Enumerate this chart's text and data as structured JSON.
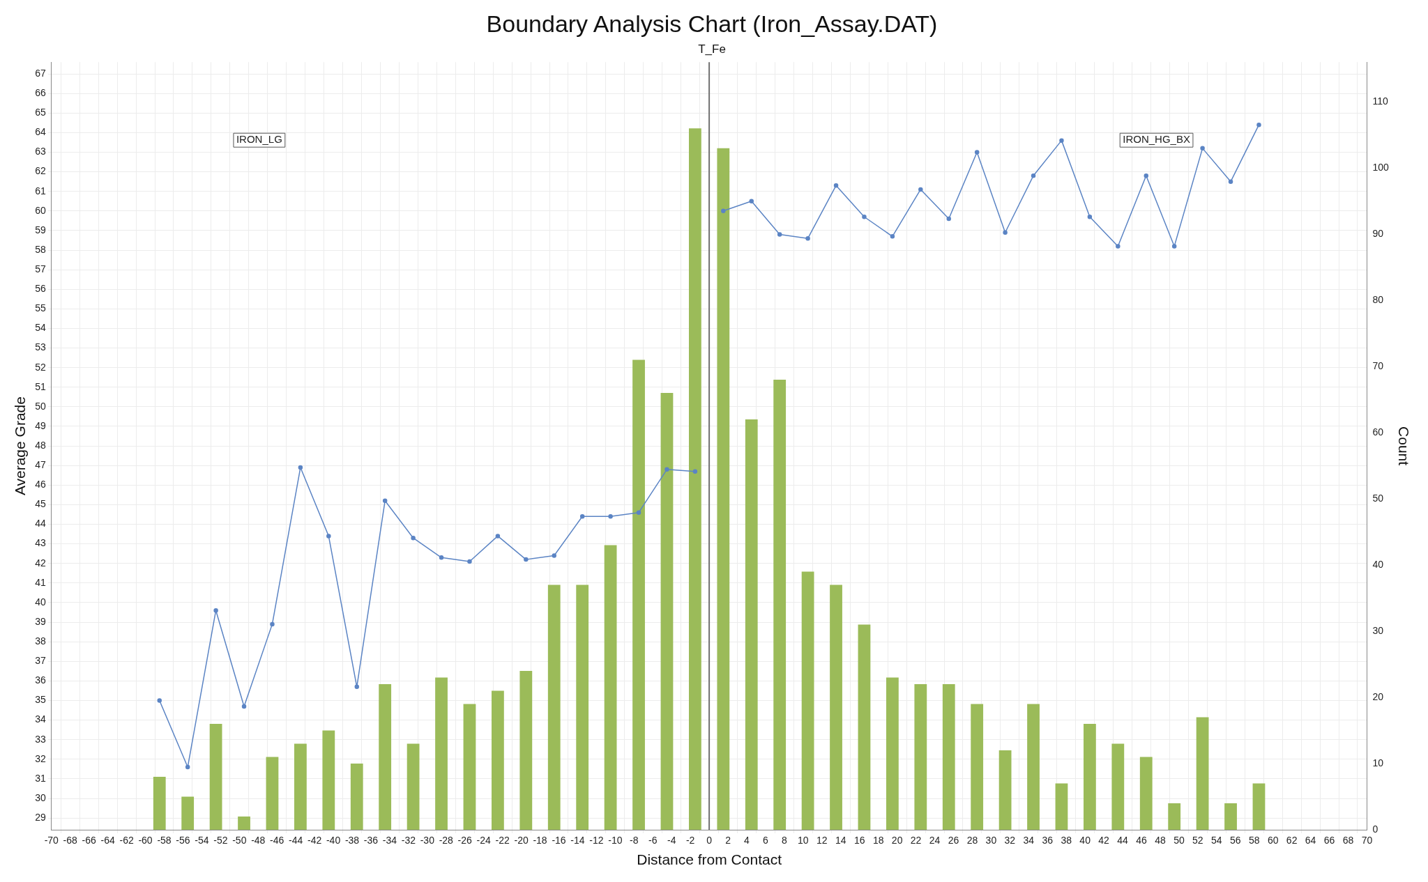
{
  "chart_data": {
    "type": "bar",
    "title": "Boundary Analysis Chart (Iron_Assay.DAT)",
    "subtitle": "T_Fe",
    "xlabel": "Distance from Contact",
    "ylabel": "Average Grade",
    "y2label": "Count",
    "annotations": [
      "IRON_LG",
      "IRON_HG_BX"
    ],
    "xlim": [
      -70,
      70
    ],
    "xticks": [
      -70,
      -68,
      -66,
      -64,
      -62,
      -60,
      -58,
      -56,
      -54,
      -52,
      -50,
      -48,
      -46,
      -44,
      -42,
      -40,
      -38,
      -36,
      -34,
      -32,
      -30,
      -28,
      -26,
      -24,
      -22,
      -20,
      -18,
      -16,
      -14,
      -12,
      -10,
      -8,
      -6,
      -4,
      -2,
      0,
      2,
      4,
      6,
      8,
      10,
      12,
      14,
      16,
      18,
      20,
      22,
      24,
      26,
      28,
      30,
      32,
      34,
      36,
      38,
      40,
      42,
      44,
      46,
      48,
      50,
      52,
      54,
      56,
      58,
      60,
      62,
      64,
      66,
      68,
      70
    ],
    "ylim": [
      28.4,
      67.6
    ],
    "yticks": [
      29,
      30,
      31,
      32,
      33,
      34,
      35,
      36,
      37,
      38,
      39,
      40,
      41,
      42,
      43,
      44,
      45,
      46,
      47,
      48,
      49,
      50,
      51,
      52,
      53,
      54,
      55,
      56,
      57,
      58,
      59,
      60,
      61,
      62,
      63,
      64,
      65,
      66,
      67
    ],
    "y2lim": [
      0,
      116
    ],
    "y2ticks": [
      0,
      10,
      20,
      30,
      40,
      50,
      60,
      70,
      80,
      90,
      100,
      110
    ],
    "grid": true,
    "marker": "circle",
    "ref_lines": [
      {
        "axis": "x",
        "value": 0,
        "color": "#707070"
      }
    ],
    "series": [
      {
        "axis": "y2",
        "color": "#9bbb59",
        "x": [
          -58.5,
          -55.5,
          -52.5,
          -49.5,
          -46.5,
          -43.5,
          -40.5,
          -37.5,
          -34.5,
          -31.5,
          -28.5,
          -25.5,
          -22.5,
          -19.5,
          -16.5,
          -13.5,
          -10.5,
          -7.5,
          -4.5,
          -1.5,
          1.5,
          4.5,
          7.5,
          10.5,
          13.5,
          16.5,
          19.5,
          22.5,
          25.5,
          28.5,
          31.5,
          34.5,
          37.5,
          40.5,
          43.5,
          46.5,
          49.5,
          52.5,
          55.5,
          58.5
        ],
        "values": [
          8,
          5,
          16,
          2,
          11,
          13,
          15,
          10,
          22,
          13,
          23,
          19,
          21,
          24,
          37,
          37,
          43,
          71,
          66,
          106,
          103,
          62,
          68,
          39,
          37,
          31,
          23,
          22,
          22,
          19,
          12,
          19,
          7,
          16,
          13,
          11,
          4,
          17,
          4,
          7
        ]
      },
      {
        "type": "line",
        "color": "#5b84c4",
        "x": [
          -58.5,
          -55.5,
          -52.5,
          -49.5,
          -46.5,
          -43.5,
          -40.5,
          -37.5,
          -34.5,
          -31.5,
          -28.5,
          -25.5,
          -22.5,
          -19.5,
          -16.5,
          -13.5,
          -10.5,
          -7.5,
          -4.5,
          -1.5
        ],
        "values": [
          35.0,
          31.6,
          39.6,
          34.7,
          38.9,
          46.9,
          43.4,
          35.7,
          45.2,
          43.3,
          42.3,
          42.1,
          43.4,
          42.2,
          42.4,
          44.4,
          44.4,
          44.6,
          46.8,
          46.7
        ]
      },
      {
        "type": "line",
        "color": "#5b84c4",
        "x": [
          1.5,
          4.5,
          7.5,
          10.5,
          13.5,
          16.5,
          19.5,
          22.5,
          25.5,
          28.5,
          31.5,
          34.5,
          37.5,
          40.5,
          43.5,
          46.5,
          49.5,
          52.5,
          55.5,
          58.5
        ],
        "values": [
          60.0,
          60.5,
          58.8,
          58.6,
          61.3,
          59.7,
          58.7,
          61.1,
          59.6,
          63.0,
          58.9,
          61.8,
          63.6,
          59.7,
          58.2,
          61.8,
          58.2,
          63.2,
          61.5,
          64.4
        ]
      }
    ]
  }
}
